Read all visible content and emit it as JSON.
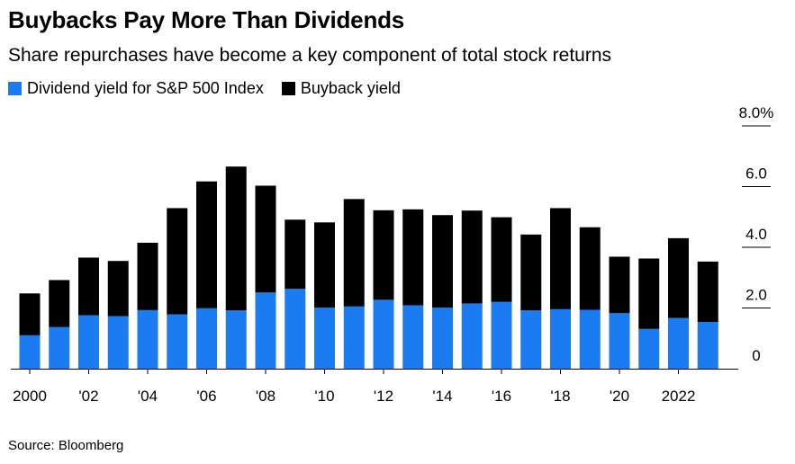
{
  "colors": {
    "dividend": "#1a7cf0",
    "buyback": "#000000",
    "axis": "#000000"
  },
  "chart_data": {
    "type": "bar",
    "stacked": true,
    "title": "Buybacks Pay More Than Dividends",
    "subtitle": "Share repurchases have become a key component of total stock returns",
    "source": "Source: Bloomberg",
    "categories": [
      "2000",
      "2001",
      "2002",
      "2003",
      "2004",
      "2005",
      "2006",
      "2007",
      "2008",
      "2009",
      "2010",
      "2011",
      "2012",
      "2013",
      "2014",
      "2015",
      "2016",
      "2017",
      "2018",
      "2019",
      "2020",
      "2021",
      "2022",
      "2023"
    ],
    "x_tick_labels": [
      {
        "index": 0,
        "label": "2000"
      },
      {
        "index": 2,
        "label": "'02"
      },
      {
        "index": 4,
        "label": "'04"
      },
      {
        "index": 6,
        "label": "'06"
      },
      {
        "index": 8,
        "label": "'08"
      },
      {
        "index": 10,
        "label": "'10"
      },
      {
        "index": 12,
        "label": "'12"
      },
      {
        "index": 14,
        "label": "'14"
      },
      {
        "index": 16,
        "label": "'16"
      },
      {
        "index": 18,
        "label": "'18"
      },
      {
        "index": 20,
        "label": "'20"
      },
      {
        "index": 22,
        "label": "2022"
      }
    ],
    "y_ticks": [
      {
        "value": 0,
        "label": "0"
      },
      {
        "value": 2,
        "label": "2.0"
      },
      {
        "value": 4,
        "label": "4.0"
      },
      {
        "value": 6,
        "label": "6.0"
      },
      {
        "value": 8,
        "label": "8.0%"
      }
    ],
    "ylim": [
      0,
      8
    ],
    "series": [
      {
        "name": "Dividend yield for S&P 500 Index",
        "key": "dividend",
        "values": [
          1.1,
          1.37,
          1.76,
          1.73,
          1.93,
          1.79,
          1.99,
          1.92,
          2.51,
          2.63,
          2.01,
          2.05,
          2.27,
          2.09,
          2.01,
          2.15,
          2.2,
          1.92,
          1.96,
          1.94,
          1.83,
          1.31,
          1.67,
          1.54
        ]
      },
      {
        "name": "Buyback yield",
        "key": "buyback",
        "values": [
          1.38,
          1.55,
          1.9,
          1.82,
          2.22,
          3.5,
          4.18,
          4.74,
          3.52,
          2.28,
          2.81,
          3.54,
          2.95,
          3.16,
          3.05,
          3.06,
          2.79,
          2.5,
          3.33,
          2.72,
          1.86,
          2.32,
          2.63,
          1.99
        ]
      }
    ]
  }
}
